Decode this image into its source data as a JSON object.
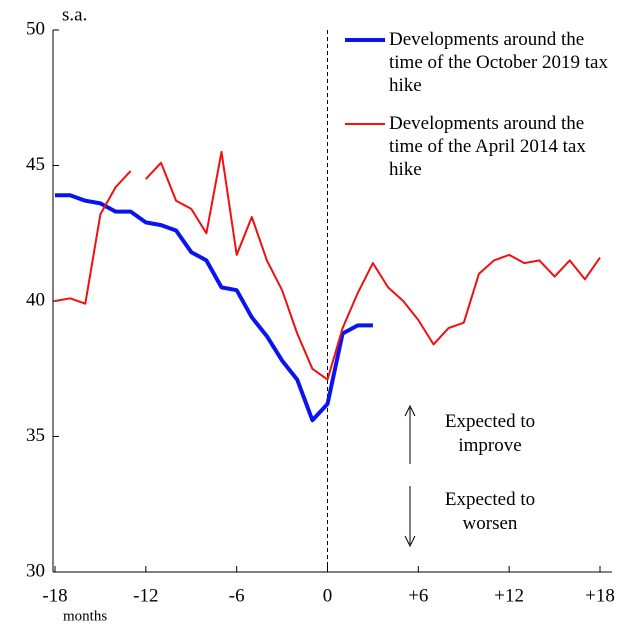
{
  "chart_data": {
    "type": "line",
    "y_unit_label": "s.a.",
    "x_label": "months",
    "xlim": [
      -18,
      18
    ],
    "ylim": [
      30,
      50
    ],
    "xticks": [
      {
        "value": -18,
        "label": "-18"
      },
      {
        "value": -12,
        "label": "-12"
      },
      {
        "value": -6,
        "label": "-6"
      },
      0,
      {
        "value": 6,
        "label": "+6"
      },
      {
        "value": 12,
        "label": "+12"
      },
      {
        "value": 18,
        "label": "+18"
      }
    ],
    "yticks": [
      30,
      35,
      40,
      45,
      50
    ],
    "vline_x": 0,
    "series": [
      {
        "name": "Developments around the time of the October 2019 tax hike",
        "color": "#0a14f0",
        "width": 4,
        "x": [
          -18,
          -17,
          -16,
          -15,
          -14,
          -13,
          -12,
          -11,
          -10,
          -9,
          -8,
          -7,
          -6,
          -5,
          -4,
          -3,
          -2,
          -1,
          0,
          1,
          2,
          3
        ],
        "values": [
          43.9,
          43.9,
          43.7,
          43.6,
          43.3,
          43.3,
          42.9,
          42.8,
          42.6,
          41.8,
          41.5,
          40.5,
          40.4,
          39.4,
          38.7,
          37.8,
          37.1,
          35.6,
          36.2,
          38.8,
          39.1,
          39.1
        ]
      },
      {
        "name": "Developments around the time of the April 2014 tax hike",
        "color": "#f01010",
        "width": 2,
        "x": [
          -18,
          -17,
          -16,
          -15,
          -14,
          -13,
          -12.5,
          -12,
          -11,
          -10,
          -9,
          -8,
          -7,
          -6,
          -5,
          -4,
          -3,
          -2,
          -1,
          0,
          1,
          2,
          3,
          4,
          5,
          6,
          7,
          8,
          9,
          10,
          11,
          12,
          13,
          14,
          15,
          16,
          17,
          18
        ],
        "values": [
          40.0,
          40.1,
          39.9,
          43.2,
          44.2,
          44.8,
          null,
          44.5,
          45.1,
          43.7,
          43.4,
          42.5,
          45.5,
          41.7,
          43.1,
          41.5,
          40.4,
          38.8,
          37.5,
          37.1,
          39.0,
          40.3,
          41.4,
          40.5,
          40.0,
          39.3,
          38.4,
          39.0,
          39.2,
          41.0,
          41.5,
          41.7,
          41.4,
          41.5,
          40.9,
          41.5,
          40.8,
          41.6
        ]
      }
    ],
    "annotations": [
      "Expected to improve",
      "Expected to worsen"
    ]
  }
}
